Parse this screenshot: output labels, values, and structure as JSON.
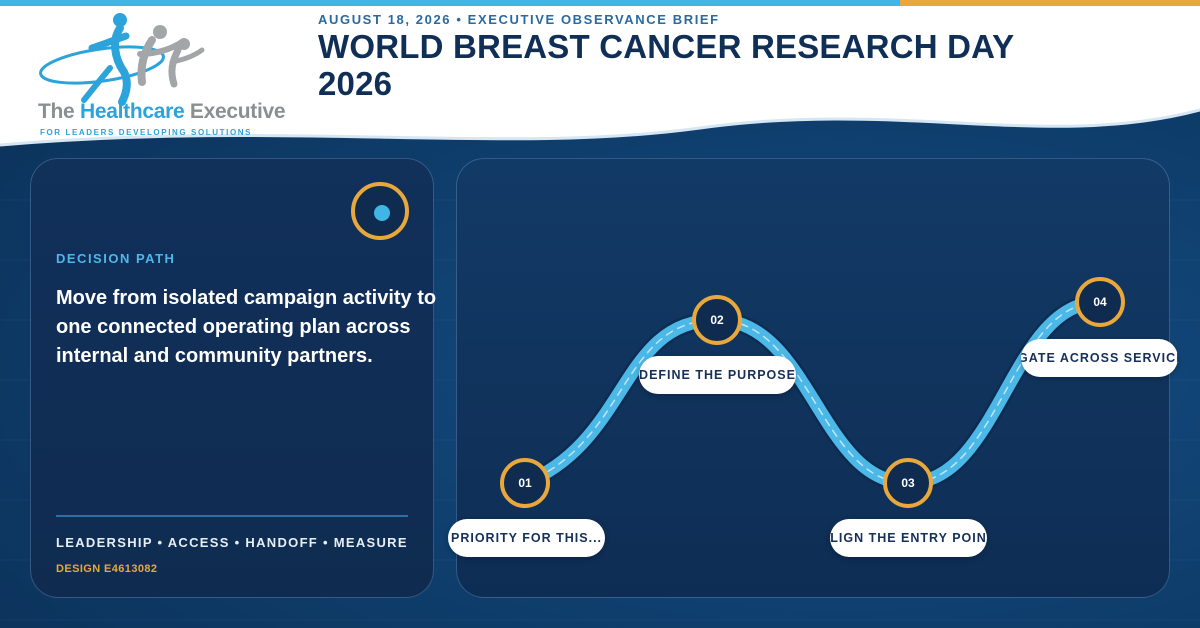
{
  "brand": {
    "logo_name_part1": "The ",
    "logo_name_highlight": "Healthcare",
    "logo_name_part2": " Executive",
    "logo_tagline": "FOR LEADERS DEVELOPING SOLUTIONS"
  },
  "header": {
    "eyebrow": "AUGUST 18, 2026 • EXECUTIVE OBSERVANCE BRIEF",
    "title": "WORLD BREAST CANCER RESEARCH DAY 2026"
  },
  "decision_card": {
    "label": "DECISION PATH",
    "body": "Move from isolated campaign activity to one connected operating plan across internal and community partners.",
    "tags": "LEADERSHIP • ACCESS • HANDOFF • MEASURE",
    "design_code": "DESIGN E4613082"
  },
  "path": {
    "steps": [
      {
        "number": "01",
        "label": "PRIORITY FOR THIS..."
      },
      {
        "number": "02",
        "label": "DEFINE THE PURPOSE"
      },
      {
        "number": "03",
        "label": "LIGN THE ENTRY POIN"
      },
      {
        "number": "04",
        "label": "VIGATE ACROSS SERVICES"
      }
    ]
  },
  "colors": {
    "background": "#0e3a66",
    "accent_blue": "#3fb6e6",
    "accent_gold": "#e8a83c",
    "title_navy": "#0f2f57",
    "card_navy": "#0f2b50"
  },
  "icons": {
    "logo": "people-figures-logo",
    "target": "target-icon"
  }
}
